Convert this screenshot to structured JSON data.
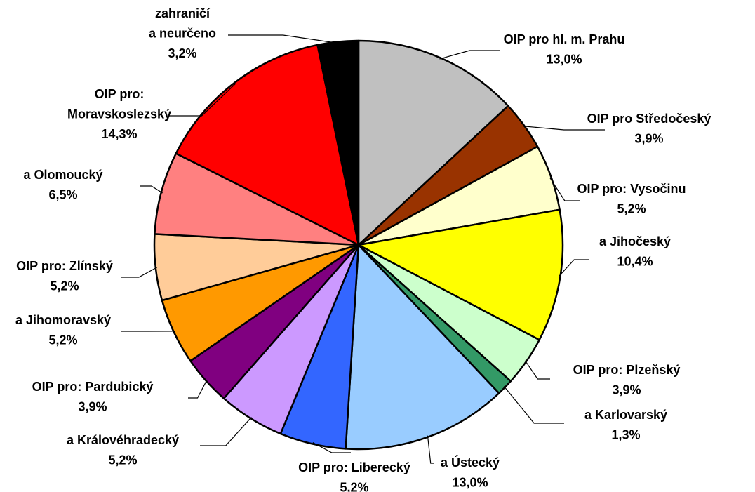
{
  "chart_data": {
    "type": "pie",
    "categories": [
      [
        "OIP pro hl. m. Prahu"
      ],
      [
        "OIP pro Středočeský"
      ],
      [
        "OIP pro: Vysočinu"
      ],
      [
        "a Jihočeský"
      ],
      [
        "OIP pro: Plzeňský"
      ],
      [
        "a Karlovarský"
      ],
      [
        "a Ústecký"
      ],
      [
        "OIP pro: Liberecký"
      ],
      [
        "a Královéhradecký"
      ],
      [
        "OIP pro: Pardubický"
      ],
      [
        "a Jihomoravský"
      ],
      [
        "OIP pro: Zlínský"
      ],
      [
        "a Olomoucký"
      ],
      [
        "OIP pro:",
        "Moravskoslezský"
      ],
      [
        "zahraničí",
        "a neurčeno"
      ]
    ],
    "values": [
      13.0,
      3.9,
      5.2,
      10.4,
      3.9,
      1.3,
      13.0,
      5.2,
      5.2,
      3.9,
      5.2,
      5.2,
      6.5,
      14.3,
      3.2
    ],
    "value_labels": [
      "13,0%",
      "3,9%",
      "5,2%",
      "10,4%",
      "3,9%",
      "1,3%",
      "13,0%",
      "5,2%",
      "5,2%",
      "3,9%",
      "5,2%",
      "5,2%",
      "6,5%",
      "14,3%",
      "3,2%"
    ],
    "colors": [
      "#c0c0c0",
      "#993300",
      "#ffffcc",
      "#ffff00",
      "#ccffcc",
      "#339966",
      "#99ccff",
      "#3366ff",
      "#cc99ff",
      "#800080",
      "#ff9900",
      "#ffcc99",
      "#ff8080",
      "#ff0000",
      "#000000"
    ]
  }
}
